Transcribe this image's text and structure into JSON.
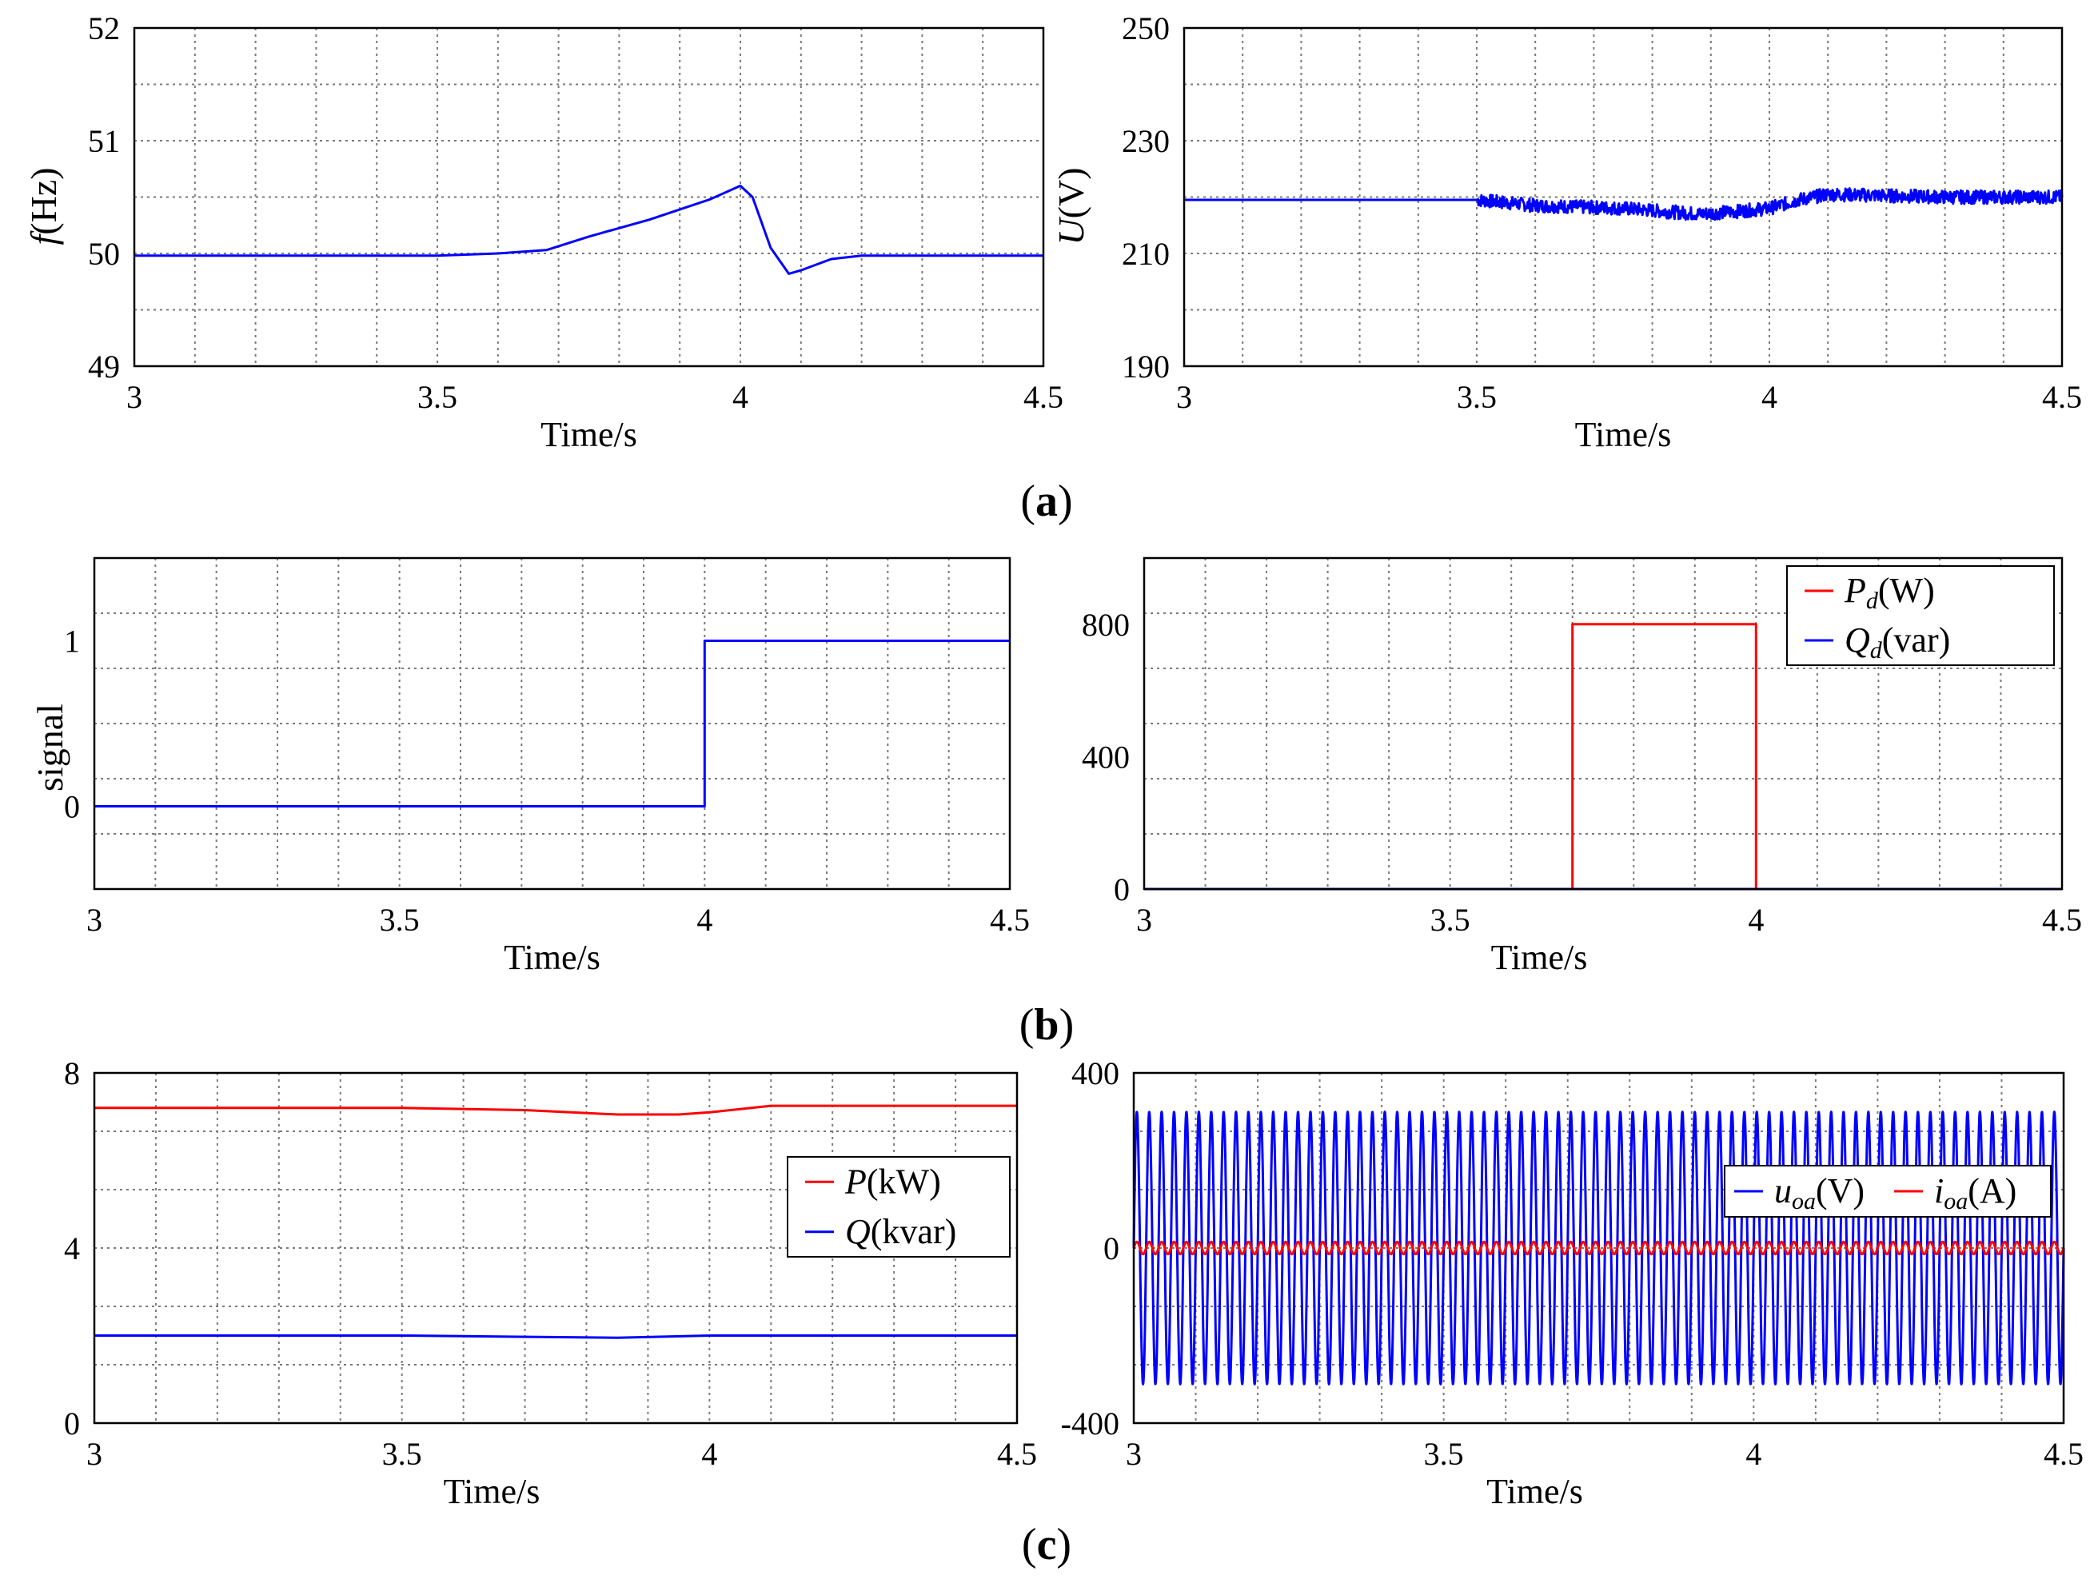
{
  "colors": {
    "blue": "#0000ff",
    "red": "#ff0000",
    "grid": "#7a7a7a",
    "axis": "#000000"
  },
  "captions": {
    "a": "(a)",
    "b": "(b)",
    "c": "(c)"
  },
  "chart_data": [
    {
      "id": "a1",
      "type": "line",
      "xlabel": "Time/s",
      "ylabel_italic": "f",
      "ylabel_rest": "(Hz)",
      "xlim": [
        3,
        4.5
      ],
      "ylim": [
        49,
        52
      ],
      "xticks": [
        "3",
        "3.5",
        "4",
        "4.5"
      ],
      "yticks": [
        "49",
        "50",
        "51",
        "52"
      ],
      "series": [
        {
          "name": "f(Hz)",
          "color": "blue",
          "x": [
            3.0,
            3.5,
            3.6,
            3.68,
            3.75,
            3.85,
            3.95,
            4.0,
            4.02,
            4.05,
            4.08,
            4.1,
            4.15,
            4.2,
            4.3,
            4.5
          ],
          "y": [
            49.98,
            49.98,
            50.0,
            50.03,
            50.15,
            50.3,
            50.48,
            50.6,
            50.5,
            50.05,
            49.82,
            49.85,
            49.95,
            49.98,
            49.98,
            49.98
          ]
        }
      ]
    },
    {
      "id": "a2",
      "type": "line",
      "xlabel": "Time/s",
      "ylabel_italic": "U",
      "ylabel_rest": "(V)",
      "xlim": [
        3,
        4.5
      ],
      "ylim": [
        190,
        250
      ],
      "xticks": [
        "3",
        "3.5",
        "4",
        "4.5"
      ],
      "yticks": [
        "190",
        "210",
        "230",
        "250"
      ],
      "series": [
        {
          "name": "U(V)",
          "color": "blue",
          "x": [
            3.0,
            3.5,
            3.6,
            3.75,
            3.88,
            3.95,
            4.0,
            4.05,
            4.1,
            4.3,
            4.5
          ],
          "y": [
            219.5,
            219.5,
            218.5,
            218.0,
            217.0,
            217.5,
            218.0,
            219.5,
            220.5,
            220.0,
            220.0
          ],
          "noise_after": 3.5,
          "noise_amp": 1.2
        }
      ]
    },
    {
      "id": "b1",
      "type": "line",
      "xlabel": "Time/s",
      "ylabel": "signal",
      "xlim": [
        3,
        4.5
      ],
      "ylim": [
        -0.5,
        1.5
      ],
      "xticks": [
        "3",
        "3.5",
        "4",
        "4.5"
      ],
      "yticks": [
        "0",
        "1"
      ],
      "ytick_values": [
        0,
        1
      ],
      "series": [
        {
          "name": "signal",
          "color": "blue",
          "x": [
            3.0,
            4.0,
            4.0,
            4.5
          ],
          "y": [
            0,
            0,
            1,
            1
          ]
        }
      ]
    },
    {
      "id": "b2",
      "type": "line",
      "xlabel": "Time/s",
      "xlim": [
        3,
        4.5
      ],
      "ylim": [
        0,
        1000
      ],
      "xticks": [
        "3",
        "3.5",
        "4",
        "4.5"
      ],
      "yticks": [
        "0",
        "400",
        "800"
      ],
      "ytick_values": [
        0,
        400,
        800
      ],
      "legend": {
        "position": "top-right",
        "entries": [
          {
            "main": "P",
            "sub": "d",
            "unit": "(W)",
            "color": "red"
          },
          {
            "main": "Q",
            "sub": "d",
            "unit": "(var)",
            "color": "blue"
          }
        ]
      },
      "series": [
        {
          "name": "Pd(W)",
          "color": "red",
          "x": [
            3.0,
            3.7,
            3.7,
            4.0,
            4.0,
            4.5
          ],
          "y": [
            0,
            0,
            800,
            800,
            0,
            0
          ]
        },
        {
          "name": "Qd(var)",
          "color": "blue",
          "x": [
            3.0,
            4.5
          ],
          "y": [
            0,
            0
          ]
        }
      ]
    },
    {
      "id": "c1",
      "type": "line",
      "xlabel": "Time/s",
      "xlim": [
        3,
        4.5
      ],
      "ylim": [
        0,
        8
      ],
      "xticks": [
        "3",
        "3.5",
        "4",
        "4.5"
      ],
      "yticks": [
        "0",
        "4",
        "8"
      ],
      "ytick_values": [
        0,
        4,
        8
      ],
      "legend": {
        "position": "center-right",
        "entries": [
          {
            "main": "P",
            "sub": "",
            "unit": "(kW)",
            "color": "red"
          },
          {
            "main": "Q",
            "sub": "",
            "unit": "(kvar)",
            "color": "blue"
          }
        ]
      },
      "series": [
        {
          "name": "P(kW)",
          "color": "red",
          "x": [
            3.0,
            3.5,
            3.7,
            3.85,
            3.95,
            4.0,
            4.1,
            4.5
          ],
          "y": [
            7.2,
            7.2,
            7.15,
            7.05,
            7.05,
            7.1,
            7.25,
            7.25
          ]
        },
        {
          "name": "Q(kvar)",
          "color": "blue",
          "x": [
            3.0,
            3.5,
            3.85,
            4.0,
            4.5
          ],
          "y": [
            2.0,
            2.0,
            1.95,
            2.0,
            2.0
          ]
        }
      ]
    },
    {
      "id": "c2",
      "type": "line",
      "xlabel": "Time/s",
      "xlim": [
        3,
        4.5
      ],
      "ylim": [
        -400,
        400
      ],
      "xticks": [
        "3",
        "3.5",
        "4",
        "4.5"
      ],
      "yticks": [
        "-400",
        "0",
        "400"
      ],
      "ytick_values": [
        -400,
        0,
        400
      ],
      "legend": {
        "position": "upper-right",
        "entries": [
          {
            "main": "u",
            "sub": "oa",
            "unit": "(V)",
            "color": "blue"
          },
          {
            "main": "i",
            "sub": "oa",
            "unit": "(A)",
            "color": "red"
          }
        ]
      },
      "series": [
        {
          "name": "uoa(V)",
          "color": "blue",
          "kind": "sine",
          "amplitude": 311,
          "frequency_hz": 50
        },
        {
          "name": "ioa(A)",
          "color": "red",
          "kind": "sine",
          "amplitude": 14,
          "frequency_hz": 50
        }
      ]
    }
  ]
}
